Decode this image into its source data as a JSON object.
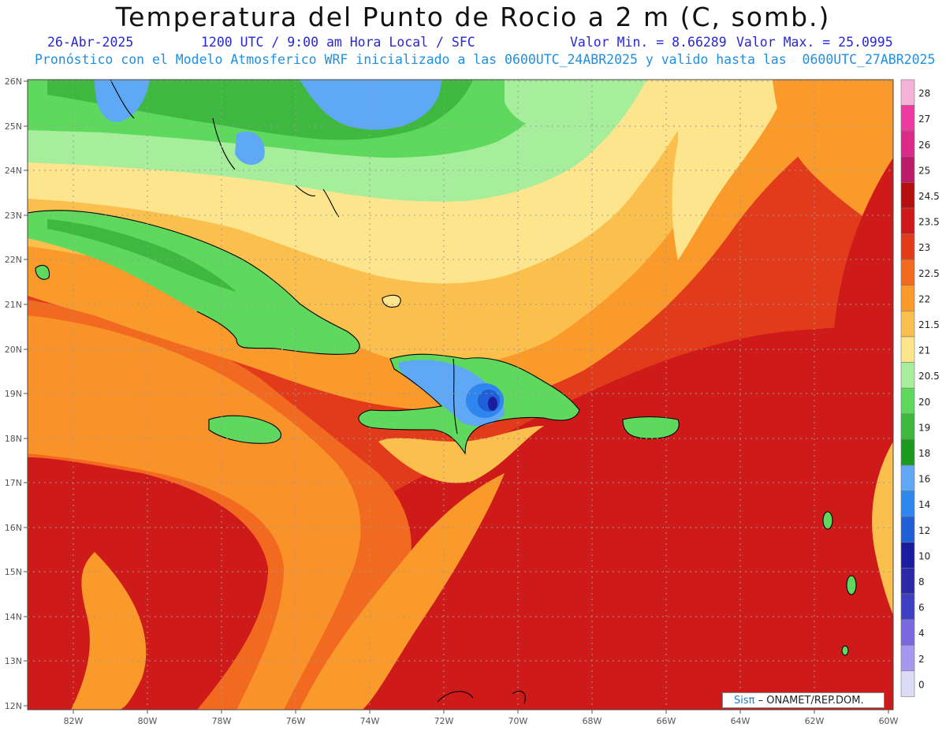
{
  "header": {
    "title": "Temperatura del Punto de Rocio a 2 m (C, somb.)",
    "date": "26-Abr-2025",
    "time": "1200 UTC / 9:00 am Hora Local / SFC",
    "valmin": "Valor Min. = 8.66289",
    "valmax": "Valor Max. = 25.0995",
    "run_info": "Pronóstico con el Modelo Atmosferico WRF inicializado a las 0600UTC_24ABR2025 y valido hasta las  0600UTC_27ABR2025"
  },
  "map": {
    "lat_labels": [
      "26N",
      "25N",
      "24N",
      "23N",
      "22N",
      "21N",
      "20N",
      "19N",
      "18N",
      "17N",
      "16N",
      "15N",
      "14N",
      "13N",
      "12N"
    ],
    "lon_labels": [
      "82W",
      "80W",
      "78W",
      "76W",
      "74W",
      "72W",
      "70W",
      "68W",
      "66W",
      "64W",
      "62W",
      "60W"
    ],
    "gridlines": true,
    "regions_shown": [
      "Florida",
      "Bahamas",
      "Cuba",
      "Jamaica",
      "Hispaniola",
      "Puerto Rico",
      "Lesser Antilles"
    ]
  },
  "colorbar": {
    "labels": [
      "28",
      "27",
      "26",
      "25",
      "24.5",
      "23.5",
      "23",
      "22.5",
      "22",
      "21.5",
      "21",
      "20.5",
      "20",
      "19",
      "18",
      "16",
      "14",
      "12",
      "10",
      "8",
      "6",
      "4",
      "2",
      "0"
    ],
    "colors": [
      "#f5b3d8",
      "#ee3a9e",
      "#dc2a8a",
      "#be1a6a",
      "#b50f10",
      "#cf1a1a",
      "#e23b1c",
      "#f26920",
      "#fa9a2a",
      "#fbbf4e",
      "#fde58e",
      "#a7ee9c",
      "#5fd85e",
      "#3fb83f",
      "#1c9a1e",
      "#5fa8f5",
      "#2f86ef",
      "#1f5fd8",
      "#1a1e9e",
      "#2a2aa8",
      "#3e3ec2",
      "#7a68e0",
      "#a598f2",
      "#dcdcf7"
    ]
  },
  "credit": {
    "brand": "Sisπ",
    "text": " – ONAMET/REP.DOM."
  }
}
